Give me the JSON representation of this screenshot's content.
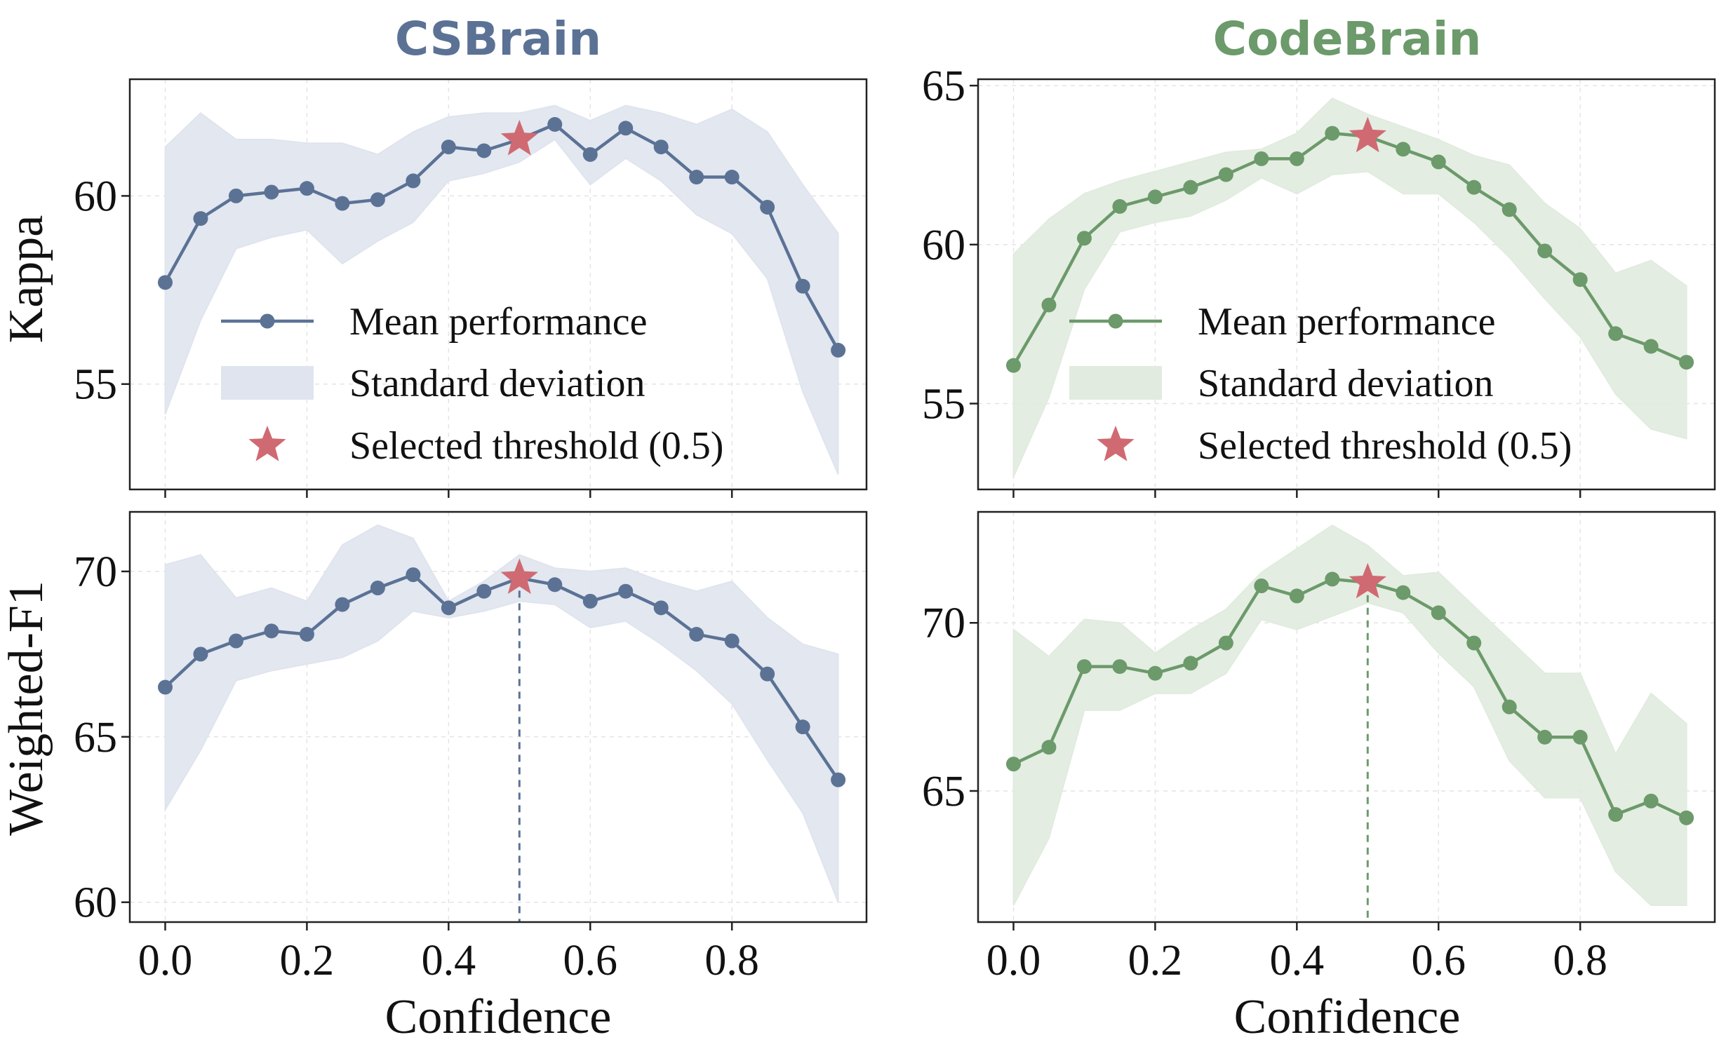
{
  "colors": {
    "CSBrain": {
      "line": "#5b7295",
      "band": "#dfe4ee"
    },
    "CodeBrain": {
      "line": "#6c9a6b",
      "band": "#e1ebdf"
    },
    "star": "#d06a72",
    "grid": "#e4e4e4",
    "frame": "#222222"
  },
  "legend": {
    "mean": "Mean performance",
    "std": "Standard deviation",
    "star": "Selected threshold (0.5)"
  },
  "chart_data": [
    {
      "type": "line",
      "model": "CSBrain",
      "title": "CSBrain",
      "xlabel": "",
      "ylabel": "Kappa",
      "x": [
        0.0,
        0.05,
        0.1,
        0.15,
        0.2,
        0.25,
        0.3,
        0.35,
        0.4,
        0.45,
        0.5,
        0.55,
        0.6,
        0.65,
        0.7,
        0.75,
        0.8,
        0.85,
        0.9,
        0.95
      ],
      "series": [
        {
          "name": "Mean performance",
          "values": [
            57.7,
            59.4,
            60.0,
            60.1,
            60.2,
            59.8,
            59.9,
            60.4,
            61.3,
            61.2,
            61.5,
            61.9,
            61.1,
            61.8,
            61.3,
            60.5,
            60.5,
            59.7,
            57.6,
            55.9
          ],
          "upper": [
            61.3,
            62.2,
            61.5,
            61.5,
            61.4,
            61.4,
            61.1,
            61.7,
            62.1,
            62.2,
            62.2,
            62.4,
            62.0,
            62.4,
            62.2,
            61.9,
            62.3,
            61.7,
            60.3,
            59.0
          ],
          "lower": [
            54.2,
            56.7,
            58.6,
            58.9,
            59.1,
            58.2,
            58.8,
            59.3,
            60.4,
            60.6,
            60.9,
            61.5,
            60.3,
            61.0,
            60.4,
            59.5,
            59.0,
            57.8,
            54.8,
            52.6
          ]
        }
      ],
      "selected_threshold": {
        "x": 0.5,
        "y": 61.5
      },
      "xlim": [
        -0.05,
        0.99
      ],
      "ylim": [
        52.2,
        63.1
      ],
      "xticks": [
        0.0,
        0.2,
        0.4,
        0.6,
        0.8
      ],
      "yticks": [
        55,
        60
      ],
      "xtick_labels": [],
      "ytick_labels": [
        "55",
        "60"
      ],
      "grid": true,
      "legend_position": "lower-left"
    },
    {
      "type": "line",
      "model": "CodeBrain",
      "title": "CodeBrain",
      "xlabel": "",
      "ylabel": "",
      "x": [
        0.0,
        0.05,
        0.1,
        0.15,
        0.2,
        0.25,
        0.3,
        0.35,
        0.4,
        0.45,
        0.5,
        0.55,
        0.6,
        0.65,
        0.7,
        0.75,
        0.8,
        0.85,
        0.9,
        0.95
      ],
      "series": [
        {
          "name": "Mean performance",
          "values": [
            56.2,
            58.1,
            60.2,
            61.2,
            61.5,
            61.8,
            62.2,
            62.7,
            62.7,
            63.5,
            63.4,
            63.0,
            62.6,
            61.8,
            61.1,
            59.8,
            58.9,
            57.2,
            56.8,
            56.3
          ],
          "upper": [
            59.7,
            60.8,
            61.6,
            62.0,
            62.3,
            62.6,
            62.9,
            63.0,
            63.5,
            64.6,
            64.1,
            63.7,
            63.3,
            62.8,
            62.5,
            61.3,
            60.5,
            59.1,
            59.5,
            58.7
          ],
          "lower": [
            52.7,
            55.2,
            58.6,
            60.4,
            60.7,
            60.9,
            61.4,
            62.1,
            61.6,
            62.2,
            62.3,
            61.6,
            61.6,
            60.7,
            59.6,
            58.3,
            57.1,
            55.3,
            54.2,
            53.9
          ]
        }
      ],
      "selected_threshold": {
        "x": 0.5,
        "y": 63.4
      },
      "xlim": [
        -0.05,
        0.99
      ],
      "ylim": [
        52.3,
        65.2
      ],
      "xticks": [
        0.0,
        0.2,
        0.4,
        0.6,
        0.8
      ],
      "yticks": [
        55,
        60,
        65
      ],
      "xtick_labels": [],
      "ytick_labels": [
        "55",
        "60",
        "65"
      ],
      "grid": true,
      "legend_position": "lower-left"
    },
    {
      "type": "line",
      "model": "CSBrain",
      "title": "",
      "xlabel": "Confidence",
      "ylabel": "Weighted-F1",
      "x": [
        0.0,
        0.05,
        0.1,
        0.15,
        0.2,
        0.25,
        0.3,
        0.35,
        0.4,
        0.45,
        0.5,
        0.55,
        0.6,
        0.65,
        0.7,
        0.75,
        0.8,
        0.85,
        0.9,
        0.95
      ],
      "series": [
        {
          "name": "Mean performance",
          "values": [
            66.5,
            67.5,
            67.9,
            68.2,
            68.1,
            69.0,
            69.5,
            69.9,
            68.9,
            69.4,
            69.8,
            69.6,
            69.1,
            69.4,
            68.9,
            68.1,
            67.9,
            66.9,
            65.3,
            63.7
          ],
          "upper": [
            70.2,
            70.5,
            69.2,
            69.5,
            69.1,
            70.8,
            71.4,
            71.0,
            69.1,
            69.7,
            70.5,
            70.1,
            70.0,
            70.1,
            69.7,
            69.4,
            69.7,
            68.6,
            67.8,
            67.5
          ],
          "lower": [
            62.8,
            64.6,
            66.7,
            67.0,
            67.2,
            67.4,
            67.9,
            68.8,
            68.6,
            68.8,
            69.1,
            69.0,
            68.3,
            68.5,
            67.8,
            67.0,
            66.0,
            64.3,
            62.7,
            60.0
          ]
        }
      ],
      "selected_threshold": {
        "x": 0.5,
        "y": 69.8
      },
      "xlim": [
        -0.05,
        0.99
      ],
      "ylim": [
        59.4,
        71.8
      ],
      "xticks": [
        0.0,
        0.2,
        0.4,
        0.6,
        0.8
      ],
      "yticks": [
        60,
        65,
        70
      ],
      "xtick_labels": [
        "0.0",
        "0.2",
        "0.4",
        "0.6",
        "0.8"
      ],
      "ytick_labels": [
        "60",
        "65",
        "70"
      ],
      "grid": true
    },
    {
      "type": "line",
      "model": "CodeBrain",
      "title": "",
      "xlabel": "Confidence",
      "ylabel": "",
      "x": [
        0.0,
        0.05,
        0.1,
        0.15,
        0.2,
        0.25,
        0.3,
        0.35,
        0.4,
        0.45,
        0.5,
        0.55,
        0.6,
        0.65,
        0.7,
        0.75,
        0.8,
        0.85,
        0.9,
        0.95
      ],
      "series": [
        {
          "name": "Mean performance",
          "values": [
            65.8,
            66.3,
            68.7,
            68.7,
            68.5,
            68.8,
            69.4,
            71.1,
            70.8,
            71.3,
            71.2,
            70.9,
            70.3,
            69.4,
            67.5,
            66.6,
            66.6,
            64.3,
            64.7,
            64.2
          ],
          "upper": [
            69.8,
            69.0,
            70.1,
            70.0,
            69.1,
            69.8,
            70.4,
            71.5,
            72.2,
            72.9,
            72.3,
            71.4,
            71.5,
            70.5,
            69.5,
            68.5,
            68.5,
            66.1,
            67.9,
            67.0
          ],
          "lower": [
            61.6,
            63.6,
            67.4,
            67.4,
            67.9,
            67.9,
            68.5,
            70.1,
            69.8,
            70.2,
            70.6,
            70.3,
            69.1,
            68.1,
            65.9,
            64.8,
            64.8,
            62.6,
            61.6,
            61.6
          ]
        }
      ],
      "selected_threshold": {
        "x": 0.5,
        "y": 71.2
      },
      "xlim": [
        -0.05,
        0.99
      ],
      "ylim": [
        61.1,
        73.3
      ],
      "xticks": [
        0.0,
        0.2,
        0.4,
        0.6,
        0.8
      ],
      "yticks": [
        65,
        70
      ],
      "xtick_labels": [
        "0.0",
        "0.2",
        "0.4",
        "0.6",
        "0.8"
      ],
      "ytick_labels": [
        "65",
        "70"
      ],
      "grid": true
    }
  ]
}
